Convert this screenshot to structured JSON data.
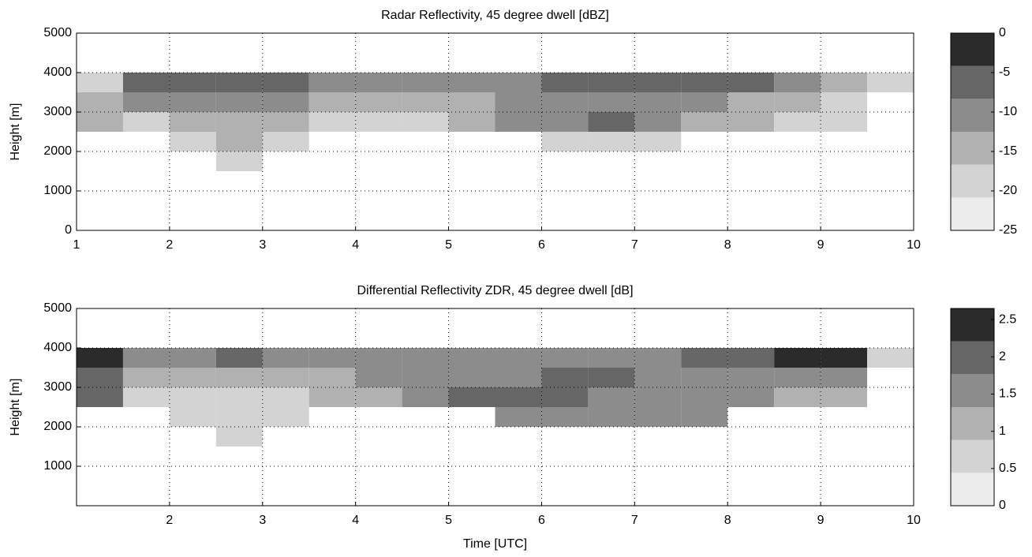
{
  "chart_data": [
    {
      "type": "heatmap",
      "title": "Radar Reflectivity, 45 degree dwell [dBZ]",
      "ylabel": "Height [m]",
      "x": [
        1,
        1.5,
        2,
        2.5,
        3,
        3.5,
        4,
        4.5,
        5,
        5.5,
        6,
        6.5,
        7,
        7.5,
        8,
        8.5,
        9,
        9.5,
        10
      ],
      "y": [
        0,
        500,
        1000,
        1500,
        2000,
        2500,
        3000,
        3500,
        4000,
        4500,
        5000
      ],
      "z": [
        [
          null,
          null,
          null,
          null,
          null,
          null,
          null,
          null,
          null,
          null,
          null,
          null,
          null,
          null,
          null,
          null,
          null,
          null
        ],
        [
          null,
          null,
          null,
          null,
          null,
          null,
          null,
          null,
          null,
          null,
          null,
          null,
          null,
          null,
          null,
          null,
          null,
          null
        ],
        [
          null,
          null,
          null,
          null,
          null,
          null,
          null,
          null,
          null,
          null,
          null,
          null,
          null,
          null,
          null,
          null,
          null,
          null
        ],
        [
          null,
          null,
          null,
          -20,
          null,
          null,
          null,
          null,
          null,
          null,
          null,
          null,
          null,
          null,
          null,
          null,
          null,
          null
        ],
        [
          null,
          null,
          -20,
          -15,
          -20,
          null,
          null,
          null,
          null,
          null,
          -20,
          -20,
          -20,
          null,
          null,
          null,
          null,
          null
        ],
        [
          -15,
          -20,
          -15,
          -15,
          -15,
          -20,
          -20,
          -20,
          -15,
          -10,
          -10,
          -5,
          -10,
          -15,
          -15,
          -20,
          -20,
          null
        ],
        [
          -15,
          -10,
          -10,
          -10,
          -10,
          -15,
          -15,
          -15,
          -15,
          -10,
          -10,
          -10,
          -10,
          -10,
          -15,
          -15,
          -20,
          null
        ],
        [
          -20,
          -5,
          -5,
          -5,
          -5,
          -10,
          -10,
          -10,
          -10,
          -10,
          -5,
          -5,
          -5,
          -5,
          -5,
          -10,
          -15,
          -20
        ],
        [
          null,
          null,
          null,
          null,
          null,
          null,
          null,
          null,
          null,
          null,
          null,
          null,
          null,
          null,
          null,
          null,
          null,
          null
        ],
        [
          null,
          null,
          null,
          null,
          null,
          null,
          null,
          null,
          null,
          null,
          null,
          null,
          null,
          null,
          null,
          null,
          null,
          null
        ]
      ],
      "xlim": [
        1,
        10
      ],
      "xticks": [
        1,
        2,
        3,
        4,
        5,
        6,
        7,
        8,
        9,
        10
      ],
      "ylim": [
        0,
        5000
      ],
      "yticks": [
        0,
        1000,
        2000,
        3000,
        4000,
        5000
      ],
      "grid": true,
      "clim": [
        -25,
        0
      ],
      "cticks": [
        -25,
        -20,
        -15,
        -10,
        -5,
        0
      ],
      "colors": [
        "#ececec",
        "#d3d3d3",
        "#b1b1b1",
        "#8c8c8c",
        "#666666",
        "#2b2b2b"
      ]
    },
    {
      "type": "heatmap",
      "title": "Differential Reflectivity ZDR, 45 degree dwell [dB]",
      "ylabel": "Height [m]",
      "xlabel": "Time [UTC]",
      "x": [
        1,
        1.5,
        2,
        2.5,
        3,
        3.5,
        4,
        4.5,
        5,
        5.5,
        6,
        6.5,
        7,
        7.5,
        8,
        8.5,
        9,
        9.5,
        10
      ],
      "y": [
        0,
        500,
        1000,
        1500,
        2000,
        2500,
        3000,
        3500,
        4000,
        4500,
        5000
      ],
      "z": [
        [
          null,
          null,
          null,
          null,
          null,
          null,
          null,
          null,
          null,
          null,
          null,
          null,
          null,
          null,
          null,
          null,
          null,
          null
        ],
        [
          null,
          null,
          null,
          null,
          null,
          null,
          null,
          null,
          null,
          null,
          null,
          null,
          null,
          null,
          null,
          null,
          null,
          null
        ],
        [
          null,
          null,
          null,
          null,
          null,
          null,
          null,
          null,
          null,
          null,
          null,
          null,
          null,
          null,
          null,
          null,
          null,
          null
        ],
        [
          null,
          null,
          null,
          0.5,
          null,
          null,
          null,
          null,
          null,
          null,
          null,
          null,
          null,
          null,
          null,
          null,
          null,
          null
        ],
        [
          null,
          null,
          0.5,
          0.5,
          0.5,
          null,
          null,
          null,
          null,
          1.5,
          1.5,
          1.5,
          1.5,
          1.5,
          null,
          null,
          null,
          null
        ],
        [
          2,
          0.5,
          0.5,
          0.5,
          0.5,
          1,
          1,
          1.5,
          2,
          2,
          2,
          1.5,
          1.5,
          1.5,
          1.5,
          1,
          1,
          null
        ],
        [
          2,
          1,
          1,
          1,
          1,
          1,
          1.5,
          1.5,
          1.5,
          1.5,
          2,
          2,
          1.5,
          1.5,
          1.5,
          1.5,
          1.5,
          null
        ],
        [
          2.5,
          1.5,
          1.5,
          2,
          1.5,
          1.5,
          1.5,
          1.5,
          1.5,
          1.5,
          1.5,
          1.5,
          1.5,
          2,
          2,
          2.5,
          2.5,
          0.5
        ],
        [
          null,
          null,
          null,
          null,
          null,
          null,
          null,
          null,
          null,
          null,
          null,
          null,
          null,
          null,
          null,
          null,
          null,
          null
        ],
        [
          null,
          null,
          null,
          null,
          null,
          null,
          null,
          null,
          null,
          null,
          null,
          null,
          null,
          null,
          null,
          null,
          null,
          null
        ]
      ],
      "xlim": [
        1,
        10
      ],
      "xticks": [
        2,
        3,
        4,
        5,
        6,
        7,
        8,
        9,
        10
      ],
      "ylim": [
        0,
        5000
      ],
      "yticks": [
        1000,
        2000,
        3000,
        4000,
        5000
      ],
      "grid": true,
      "clim": [
        0,
        2.65
      ],
      "cticks": [
        0,
        0.5,
        1,
        1.5,
        2,
        2.5
      ],
      "colors": [
        "#ececec",
        "#d3d3d3",
        "#b1b1b1",
        "#8c8c8c",
        "#666666",
        "#2b2b2b"
      ]
    }
  ]
}
